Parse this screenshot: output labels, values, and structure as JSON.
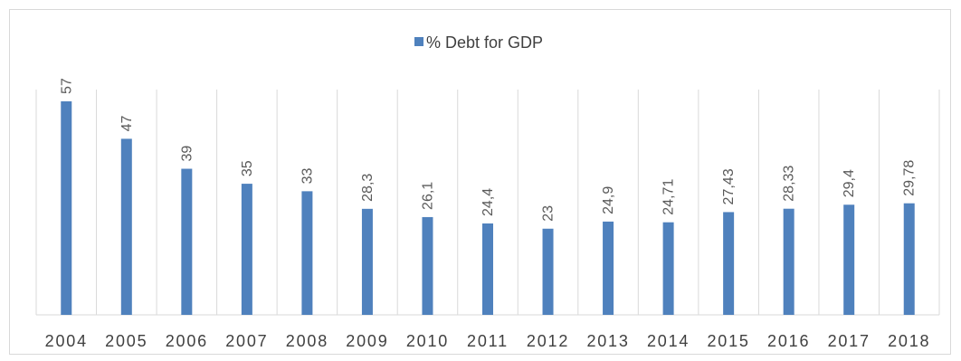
{
  "chart_data": {
    "type": "bar",
    "title": "",
    "xlabel": "",
    "ylabel": "",
    "categories": [
      "2004",
      "2005",
      "2006",
      "2007",
      "2008",
      "2009",
      "2010",
      "2011",
      "2012",
      "2013",
      "2014",
      "2015",
      "2016",
      "2017",
      "2018"
    ],
    "series": [
      {
        "name": "% Debt for GDP",
        "values": [
          57,
          47,
          39,
          35,
          33,
          28.3,
          26.1,
          24.4,
          23,
          24.9,
          24.71,
          27.43,
          28.33,
          29.4,
          29.78
        ],
        "labels": [
          "57",
          "47",
          "39",
          "35",
          "33",
          "28,3",
          "26,1",
          "24,4",
          "23",
          "24,9",
          "24,71",
          "27,43",
          "28,33",
          "29,4",
          "29,78"
        ],
        "color": "#4f81bd"
      }
    ],
    "ylim": [
      0,
      57
    ],
    "legend_position": "top-center",
    "grid": "vertical",
    "data_labels": "rotated-above-bar"
  }
}
